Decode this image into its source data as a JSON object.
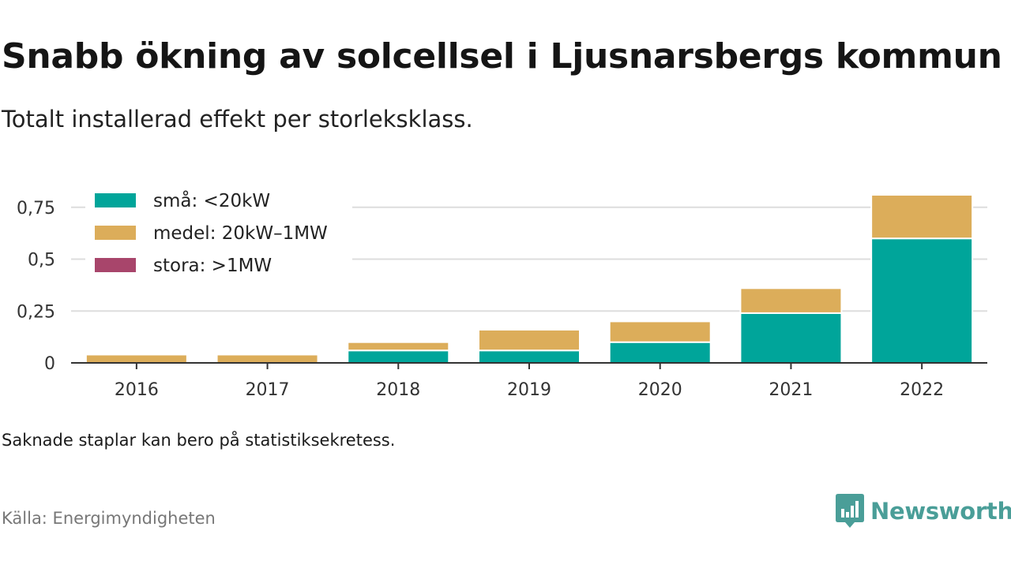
{
  "title": "Snabb ökning av solcellsel i Ljusnarsbergs kommun",
  "subtitle": "Totalt installerad effekt per storleksklass.",
  "note": "Saknade staplar kan bero på statistiksekretess.",
  "source": "Källa: Energimyndigheten",
  "brand": "Newsworthy",
  "colors": {
    "small": "#00a59a",
    "medium": "#dcad5a",
    "large": "#a8456b",
    "grid": "#dddddd",
    "axis": "#333333",
    "brand": "#4a9e98"
  },
  "chart_data": {
    "type": "bar",
    "stacked": true,
    "categories": [
      "2016",
      "2017",
      "2018",
      "2019",
      "2020",
      "2021",
      "2022"
    ],
    "series": [
      {
        "name": "små: <20kW",
        "values": [
          0,
          0,
          0.06,
          0.06,
          0.1,
          0.24,
          0.6
        ]
      },
      {
        "name": "medel: 20kW–1MW",
        "values": [
          0.04,
          0.04,
          0.04,
          0.1,
          0.1,
          0.12,
          0.21
        ]
      },
      {
        "name": "stora: >1MW",
        "values": [
          0,
          0,
          0,
          0,
          0,
          0,
          0
        ]
      }
    ],
    "yticks": [
      "0",
      "0,25",
      "0,5",
      "0,75"
    ],
    "ytick_values": [
      0,
      0.25,
      0.5,
      0.75
    ],
    "ylim": [
      0,
      0.82
    ],
    "grid": true,
    "legend_position": "top-left"
  }
}
